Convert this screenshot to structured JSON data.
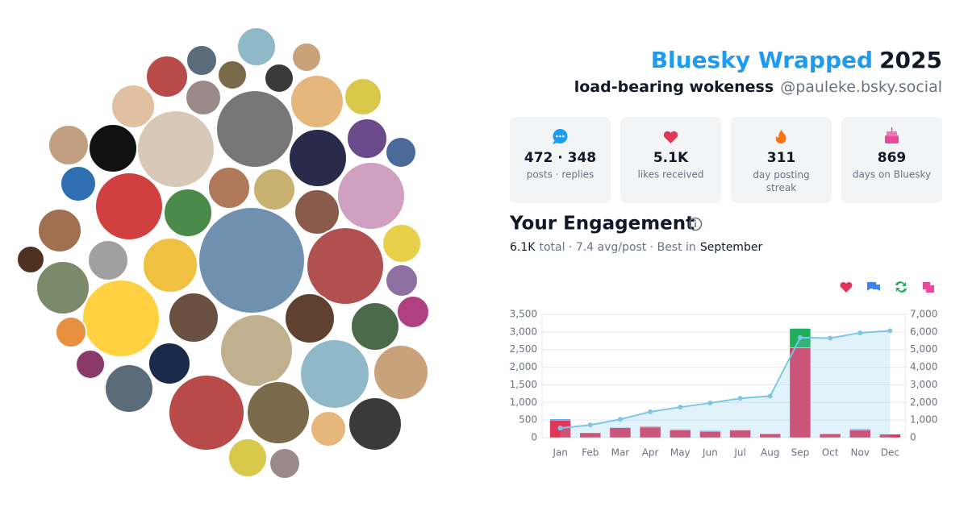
{
  "header": {
    "brand": "Bluesky Wrapped",
    "year": "2025",
    "display_name": "load-bearing wokeness",
    "handle": "@pauleke.bsky.social"
  },
  "stats": [
    {
      "value": "472 · 348",
      "label": "posts · replies"
    },
    {
      "value": "5.1K",
      "label": "likes received"
    },
    {
      "value": "311",
      "label": "day posting streak"
    },
    {
      "value": "869",
      "label": "days on Bluesky"
    }
  ],
  "engagement": {
    "title": "Your Engagement",
    "total": "6.1K",
    "summary": "total · 7.4 avg/post · Best in",
    "best_month": "September"
  },
  "chart_data": {
    "type": "bar",
    "stacked": true,
    "categories": [
      "Jan",
      "Feb",
      "Mar",
      "Apr",
      "May",
      "Jun",
      "Jul",
      "Aug",
      "Sep",
      "Oct",
      "Nov",
      "Dec"
    ],
    "series": [
      {
        "color": "#e0365a",
        "values": [
          500,
          140,
          280,
          300,
          220,
          180,
          210,
          110,
          2550,
          110,
          220,
          100
        ]
      },
      {
        "color": "#3b82f6",
        "values": [
          30,
          10,
          20,
          25,
          20,
          20,
          20,
          10,
          0,
          10,
          25,
          10
        ]
      },
      {
        "color": "#1fae5b",
        "values": [
          10,
          5,
          10,
          10,
          10,
          10,
          10,
          5,
          550,
          5,
          5,
          5
        ]
      },
      {
        "color": "#ec4899",
        "values": [
          5,
          0,
          5,
          5,
          5,
          5,
          5,
          0,
          0,
          0,
          5,
          0
        ]
      },
      {
        "type": "line",
        "axis": "y2",
        "color": "#7cc6e8",
        "values": [
          545,
          720,
          1040,
          1470,
          1730,
          1970,
          2230,
          2360,
          5680,
          5650,
          5950,
          6070
        ]
      }
    ],
    "ylim": [
      0,
      3500
    ],
    "yticks": [
      0,
      500,
      {
        "value": 1000,
        "label": "1,000"
      },
      {
        "value": 1500,
        "label": "1,500"
      },
      {
        "value": 2000,
        "label": "2,000"
      },
      {
        "value": 2500,
        "label": "2,500"
      },
      {
        "value": 3000,
        "label": "3,000"
      },
      {
        "value": 3500,
        "label": "3,500"
      }
    ],
    "y2lim": [
      0,
      7000
    ],
    "y2ticks": [
      0,
      {
        "value": 1000,
        "label": "1,000"
      },
      {
        "value": 2000,
        "label": "2,000"
      },
      {
        "value": 3000,
        "label": "3,000"
      },
      {
        "value": 4000,
        "label": "4,000"
      },
      {
        "value": 5000,
        "label": "5,000"
      },
      {
        "value": 6000,
        "label": "6,000"
      },
      {
        "value": 7000,
        "label": "7,000"
      }
    ],
    "grid": true
  }
}
